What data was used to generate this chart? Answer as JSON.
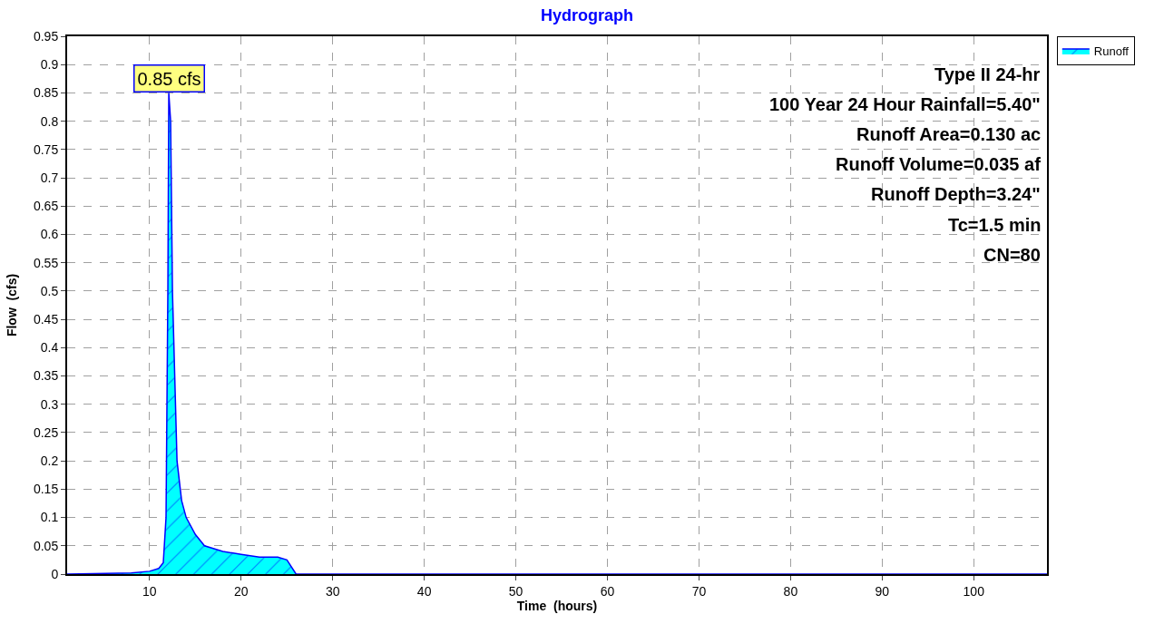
{
  "chart_data": {
    "type": "area",
    "title": "Hydrograph",
    "xlabel": "Time  (hours)",
    "ylabel": "Flow  (cfs)",
    "x": [
      1,
      8,
      10,
      11,
      11.5,
      11.8,
      12.0,
      12.1,
      12.3,
      12.5,
      13,
      13.5,
      14,
      15,
      16,
      18,
      20,
      22,
      24,
      25,
      26,
      108
    ],
    "series": [
      {
        "name": "Runoff",
        "color": "#00ffff",
        "values": [
          0,
          0.002,
          0.005,
          0.01,
          0.02,
          0.1,
          0.5,
          0.85,
          0.8,
          0.5,
          0.2,
          0.13,
          0.1,
          0.07,
          0.05,
          0.04,
          0.035,
          0.03,
          0.03,
          0.025,
          0,
          0
        ]
      }
    ],
    "xlim": [
      1,
      108
    ],
    "xticks": [
      10,
      20,
      30,
      40,
      50,
      60,
      70,
      80,
      90,
      100
    ],
    "ylim": [
      0,
      0.95
    ],
    "yticks": [
      0,
      0.05,
      0.1,
      0.15,
      0.2,
      0.25,
      0.3,
      0.35,
      0.4,
      0.45,
      0.5,
      0.55,
      0.6,
      0.65,
      0.7,
      0.75,
      0.8,
      0.85,
      0.9,
      0.95
    ],
    "grid": true,
    "legend": "top right",
    "annotations": [
      {
        "text": "0.85 cfs",
        "x": 12.1,
        "y": 0.85
      },
      "Type II 24-hr",
      "100 Year 24 Hour Rainfall=5.40\"",
      "Runoff Area=0.130 ac",
      "Runoff Volume=0.035 af",
      "Runoff Depth=3.24\"",
      "Tc=1.5 min",
      "CN=80"
    ]
  }
}
